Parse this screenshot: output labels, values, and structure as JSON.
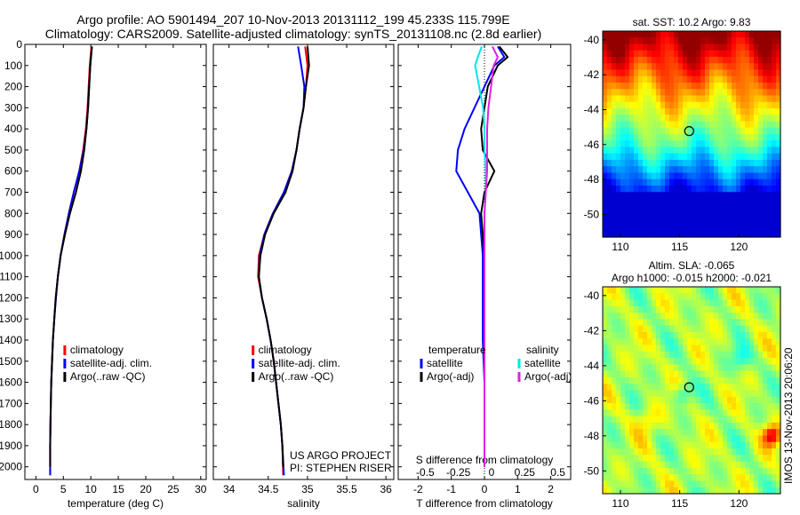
{
  "header": {
    "line1": "Argo profile: AO 5901494_207 10-Nov-2013 20131112_199 45.233S 115.799E",
    "line2": "Climatology: CARS2009. Satellite-adjusted climatology: synTS_20131108.nc (2.8d earlier)"
  },
  "side_stamp": "IMOS 13-Nov-2013 20:06:20",
  "colors": {
    "climatology": "#ff0000",
    "satellite": "#0000ff",
    "argo": "#000000",
    "sal_satellite": "#00e5ee",
    "sal_argo": "#e020e0"
  },
  "chart_data": [
    {
      "type": "line",
      "id": "temperature",
      "xlabel": "temperature (deg C)",
      "ylabel": "",
      "xlim": [
        -2,
        31
      ],
      "ylim": [
        2060,
        0
      ],
      "xticks": [
        "0",
        "5",
        "10",
        "15",
        "20",
        "25",
        "30"
      ],
      "yticks": [
        "0",
        "100",
        "200",
        "300",
        "400",
        "500",
        "600",
        "700",
        "800",
        "900",
        "1000",
        "1100",
        "1200",
        "1300",
        "1400",
        "1500",
        "1600",
        "1700",
        "1800",
        "1900",
        "2000"
      ],
      "legend": {
        "placement": "lower-center",
        "entries": [
          "climatology",
          "satellite-adj. clim.",
          "Argo(..raw -QC)"
        ]
      },
      "series": [
        {
          "name": "climatology",
          "color": "#ff0000",
          "depth": [
            10,
            100,
            200,
            300,
            400,
            500,
            600,
            700,
            800,
            900,
            1000,
            1100,
            1200,
            1300,
            1400,
            1500,
            1600,
            1700,
            1800,
            1900,
            2040
          ],
          "values": [
            10.1,
            9.8,
            9.6,
            9.4,
            9.1,
            8.6,
            7.9,
            6.9,
            6.0,
            5.2,
            4.5,
            4.0,
            3.65,
            3.35,
            3.1,
            2.95,
            2.8,
            2.72,
            2.65,
            2.6,
            2.6
          ]
        },
        {
          "name": "satellite-adj. clim.",
          "color": "#0000ff",
          "depth": [
            10,
            100,
            200,
            300,
            400,
            500,
            600,
            700,
            800,
            900,
            1000,
            1100,
            1200,
            1300,
            1400,
            1500,
            1600,
            1700,
            1800,
            1900,
            2040
          ],
          "values": [
            10.2,
            9.9,
            9.7,
            9.5,
            9.2,
            8.7,
            7.9,
            6.9,
            6.0,
            5.2,
            4.5,
            4.0,
            3.65,
            3.35,
            3.1,
            2.95,
            2.8,
            2.72,
            2.65,
            2.6,
            2.6
          ]
        },
        {
          "name": "Argo(..raw -QC)",
          "color": "#000000",
          "depth": [
            10,
            100,
            200,
            300,
            400,
            500,
            600,
            700,
            800,
            900,
            1000,
            1100,
            1200,
            1300,
            1400,
            1500,
            1600,
            1700,
            1800,
            1900,
            2000
          ],
          "values": [
            10.2,
            9.9,
            9.7,
            9.5,
            9.2,
            8.8,
            8.2,
            7.3,
            6.2,
            5.3,
            4.5,
            4.0,
            3.6,
            3.35,
            3.1,
            2.95,
            2.8,
            2.72,
            2.65,
            2.6,
            2.6
          ]
        }
      ]
    },
    {
      "type": "line",
      "id": "salinity",
      "xlabel": "salinity",
      "xlim": [
        33.8,
        36.1
      ],
      "ylim": [
        2060,
        0
      ],
      "xticks": [
        "34",
        "34.5",
        "35",
        "35.5",
        "36"
      ],
      "legend": {
        "placement": "lower-center",
        "entries": [
          "climatology",
          "satellite-adj. clim.",
          "Argo(..raw -QC)"
        ]
      },
      "annotation": [
        "US ARGO PROJECT",
        "PI: STEPHEN RISER"
      ],
      "series": [
        {
          "name": "climatology",
          "color": "#ff0000",
          "depth": [
            10,
            100,
            200,
            300,
            400,
            500,
            600,
            700,
            800,
            900,
            1000,
            1100,
            1200,
            1300,
            1400,
            1500,
            1600,
            1700,
            1800,
            1900,
            2040
          ],
          "values": [
            34.97,
            35.0,
            34.98,
            34.95,
            34.9,
            34.86,
            34.8,
            34.7,
            34.56,
            34.45,
            34.38,
            34.37,
            34.42,
            34.48,
            34.53,
            34.57,
            34.6,
            34.63,
            34.66,
            34.68,
            34.69
          ]
        },
        {
          "name": "satellite-adj. clim.",
          "color": "#0000ff",
          "depth": [
            10,
            100,
            200,
            300,
            400,
            500,
            600,
            700,
            800,
            900,
            1000,
            1100,
            1200,
            1300,
            1400,
            1500,
            1600,
            1700,
            1800,
            1900,
            2040
          ],
          "values": [
            34.88,
            34.92,
            34.96,
            34.95,
            34.9,
            34.86,
            34.8,
            34.7,
            34.56,
            34.45,
            34.39,
            34.38,
            34.42,
            34.48,
            34.53,
            34.57,
            34.6,
            34.63,
            34.66,
            34.68,
            34.7
          ]
        },
        {
          "name": "Argo(..raw -QC)",
          "color": "#000000",
          "depth": [
            10,
            100,
            200,
            300,
            400,
            500,
            600,
            700,
            800,
            900,
            1000,
            1100,
            1200,
            1300,
            1400,
            1500,
            1600,
            1700,
            1800,
            1900,
            2000
          ],
          "values": [
            35.0,
            35.02,
            34.98,
            34.95,
            34.9,
            34.86,
            34.81,
            34.72,
            34.57,
            34.46,
            34.4,
            34.38,
            34.42,
            34.48,
            34.53,
            34.57,
            34.6,
            34.63,
            34.66,
            34.68,
            34.69
          ]
        }
      ]
    },
    {
      "type": "line",
      "id": "differences",
      "xlabel": "T difference from climatology",
      "xlim": [
        -2.6,
        2.6
      ],
      "ylim": [
        2060,
        0
      ],
      "xticks": [
        "-2",
        "-1",
        "0",
        "1",
        "2"
      ],
      "xticks_top_label": "S difference from climatology",
      "xticks_top": [
        "-0.5",
        "-0.25",
        "0",
        "0.25",
        "0.5"
      ],
      "xlim_top": [
        -0.65,
        0.65
      ],
      "legend": {
        "placement": "lower",
        "groups": [
          {
            "title": "temperature",
            "entries": [
              "satellite",
              "Argo(-adj)"
            ]
          },
          {
            "title": "salinity",
            "entries": [
              "satellite",
              "Argo(-adj)"
            ]
          }
        ]
      },
      "series": [
        {
          "name": "satellite",
          "group": "temperature",
          "color": "#0000ff",
          "depth": [
            10,
            60,
            100,
            200,
            300,
            400,
            500,
            600,
            700,
            800,
            900,
            1000,
            1200,
            1400,
            1600,
            1800,
            2000
          ],
          "values": [
            0.4,
            0.6,
            0.3,
            0.0,
            -0.3,
            -0.6,
            -0.8,
            -0.85,
            -0.5,
            -0.15,
            -0.1,
            -0.05,
            -0.05,
            -0.05,
            0.0,
            0.0,
            0.0
          ]
        },
        {
          "name": "Argo(-adj)",
          "group": "temperature",
          "color": "#000000",
          "depth": [
            10,
            60,
            100,
            200,
            300,
            400,
            500,
            600,
            700,
            800,
            900,
            1000,
            1200,
            1400,
            1600,
            1800,
            2000
          ],
          "values": [
            0.45,
            0.7,
            0.4,
            0.1,
            0.0,
            -0.1,
            -0.05,
            0.3,
            0.0,
            -0.1,
            -0.05,
            0.0,
            0.0,
            0.0,
            0.0,
            0.0,
            0.0
          ]
        },
        {
          "name": "satellite",
          "group": "salinity",
          "color": "#00e5ee",
          "depth": [
            10,
            60,
            100,
            200,
            300,
            400,
            500,
            600,
            700,
            800,
            900,
            1000,
            1200,
            1400,
            1600,
            1800,
            2000
          ],
          "values": [
            -0.02,
            -0.05,
            -0.07,
            -0.04,
            -0.01,
            0.0,
            0.0,
            0.01,
            0.01,
            0.0,
            0.0,
            0.0,
            0.0,
            0.0,
            0.0,
            0.0,
            0.0
          ]
        },
        {
          "name": "Argo(-adj)",
          "group": "salinity",
          "color": "#e020e0",
          "depth": [
            10,
            60,
            100,
            200,
            300,
            400,
            500,
            600,
            700,
            800,
            900,
            1000,
            1200,
            1400,
            1600,
            1800,
            2000
          ],
          "values": [
            0.06,
            0.1,
            0.07,
            0.05,
            0.03,
            0.02,
            0.02,
            0.02,
            0.01,
            0.0,
            0.0,
            0.0,
            0.0,
            0.0,
            0.0,
            0.0,
            0.0
          ]
        }
      ]
    },
    {
      "type": "heatmap",
      "id": "sst-map",
      "title": "sat. SST: 10.2  Argo: 9.83",
      "xlim": [
        108.5,
        123.5
      ],
      "ylim": [
        -51.3,
        -39.5
      ],
      "xticks": [
        "110",
        "115",
        "120"
      ],
      "yticks": [
        "-40",
        "-42",
        "-44",
        "-46",
        "-48",
        "-50"
      ],
      "marker": {
        "lon": 115.8,
        "lat": -45.23
      }
    },
    {
      "type": "heatmap",
      "id": "sla-map",
      "title": "Altim. SLA: -0.065",
      "subtitle": "Argo h1000: -0.015 h2000: -0.021",
      "xlim": [
        108.5,
        123.5
      ],
      "ylim": [
        -51.3,
        -39.5
      ],
      "xticks": [
        "110",
        "115",
        "120"
      ],
      "yticks": [
        "-40",
        "-42",
        "-44",
        "-46",
        "-48",
        "-50"
      ],
      "marker": {
        "lon": 115.8,
        "lat": -45.23
      }
    }
  ]
}
